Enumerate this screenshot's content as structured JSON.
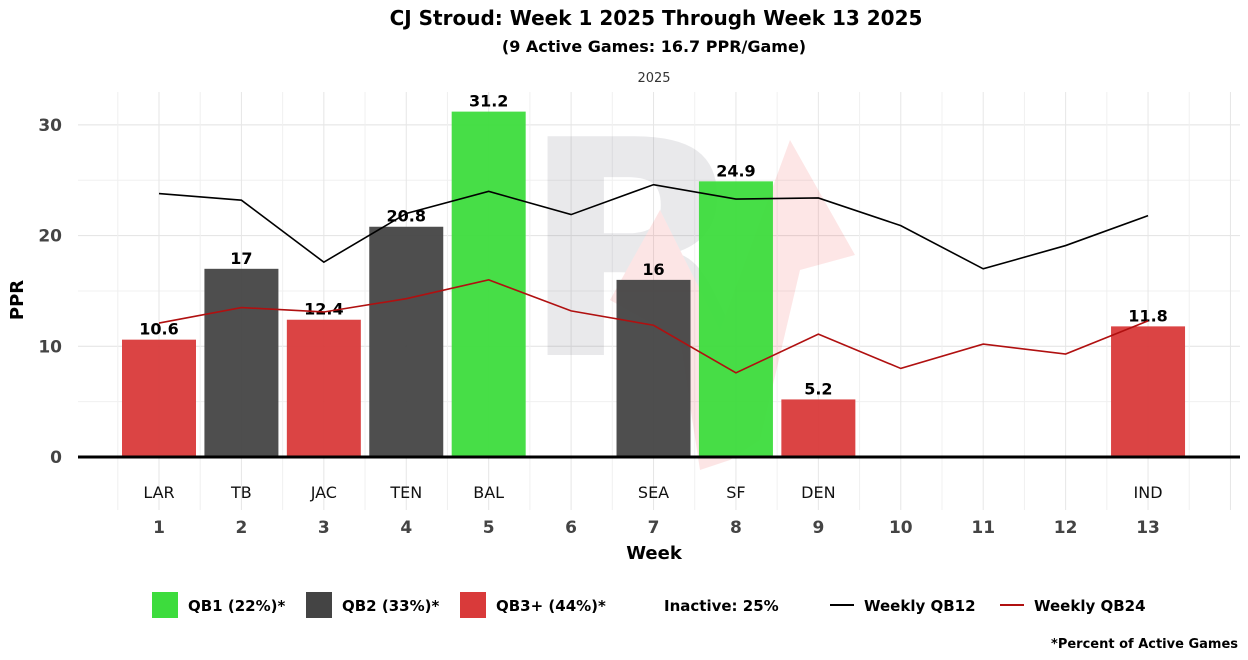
{
  "chart_data": {
    "type": "bar",
    "title": "CJ Stroud: Week 1 2025 Through Week 13 2025",
    "subtitle": "(9 Active Games: 16.7 PPR/Game)",
    "facet_label": "2025",
    "xlabel": "Week",
    "ylabel": "PPR",
    "ylim": [
      0,
      32
    ],
    "yticks": [
      0,
      10,
      20,
      30
    ],
    "grid": true,
    "weeks": [
      1,
      2,
      3,
      4,
      5,
      6,
      7,
      8,
      9,
      10,
      11,
      12,
      13
    ],
    "opponents": [
      "LAR",
      "TB",
      "JAC",
      "TEN",
      "BAL",
      "",
      "SEA",
      "SF",
      "DEN",
      "",
      "",
      "",
      "IND"
    ],
    "bars": [
      {
        "week": 1,
        "value": 10.6,
        "label": "10.6",
        "tier": "QB3+"
      },
      {
        "week": 2,
        "value": 17,
        "label": "17",
        "tier": "QB2"
      },
      {
        "week": 3,
        "value": 12.4,
        "label": "12.4",
        "tier": "QB3+"
      },
      {
        "week": 4,
        "value": 20.8,
        "label": "20.8",
        "tier": "QB2"
      },
      {
        "week": 5,
        "value": 31.2,
        "label": "31.2",
        "tier": "QB1"
      },
      {
        "week": 7,
        "value": 16,
        "label": "16",
        "tier": "QB2"
      },
      {
        "week": 8,
        "value": 24.9,
        "label": "24.9",
        "tier": "QB1"
      },
      {
        "week": 9,
        "value": 5.2,
        "label": "5.2",
        "tier": "QB3+"
      },
      {
        "week": 13,
        "value": 11.8,
        "label": "11.8",
        "tier": "QB3+"
      }
    ],
    "series": [
      {
        "name": "Weekly QB12",
        "color": "#000000",
        "values": [
          23.8,
          23.2,
          17.6,
          22.0,
          24.0,
          21.9,
          24.6,
          23.3,
          23.4,
          20.9,
          17.0,
          19.1,
          21.8
        ]
      },
      {
        "name": "Weekly QB24",
        "color": "#b01010",
        "values": [
          12.1,
          13.5,
          13.1,
          14.3,
          16.0,
          13.2,
          11.9,
          7.6,
          11.1,
          8.0,
          10.2,
          9.3,
          12.3
        ]
      }
    ],
    "tier_colors": {
      "QB1": "#3ddc3d",
      "QB2": "#444444",
      "QB3+": "#d93a3a"
    },
    "legend": {
      "placement": "bottom",
      "items": [
        {
          "label": "QB1 (22%)*",
          "tier": "QB1"
        },
        {
          "label": "QB2 (33%)*",
          "tier": "QB2"
        },
        {
          "label": "QB3+ (44%)*",
          "tier": "QB3+"
        }
      ],
      "inactive": "Inactive: 25%",
      "lines": [
        {
          "label": "Weekly QB12",
          "color": "#000000"
        },
        {
          "label": "Weekly QB24",
          "color": "#b01010"
        }
      ]
    },
    "footnote": "*Percent of Active Games"
  }
}
